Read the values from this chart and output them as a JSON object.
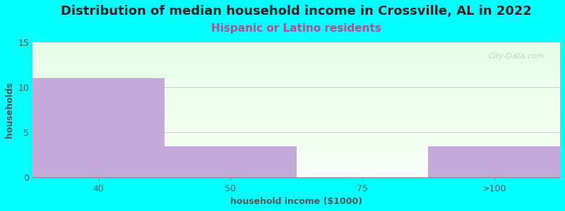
{
  "title": "Distribution of median household income in Crossville, AL in 2022",
  "subtitle": "Hispanic or Latino residents",
  "xlabel": "household income ($1000)",
  "ylabel": "households",
  "categories": [
    "40",
    "50",
    "75",
    ">100"
  ],
  "bar_edges": [
    0,
    1,
    2,
    3,
    4
  ],
  "values": [
    11,
    3.5,
    0,
    3.5
  ],
  "bar_color": "#c4aad8",
  "background_color": "#00ffff",
  "ylim": [
    0,
    15
  ],
  "yticks": [
    0,
    5,
    10,
    15
  ],
  "title_fontsize": 13,
  "subtitle_fontsize": 11,
  "subtitle_color": "#b05090",
  "axis_label_fontsize": 9,
  "watermark": "City-Data.com",
  "tick_label_color": "#555555",
  "title_color": "#222222"
}
